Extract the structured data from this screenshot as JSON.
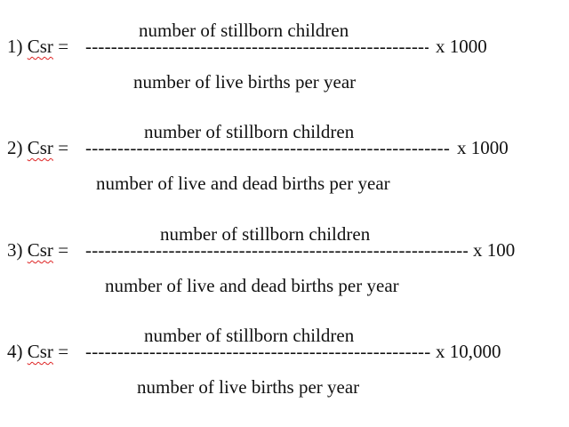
{
  "formulas": [
    {
      "index_label": "1)",
      "variable": "Csr",
      "equals": "=",
      "numerator": "number of stillborn children",
      "denominator": "number of live births per year",
      "multiplier": "x 1000"
    },
    {
      "index_label": "2)",
      "variable": "Csr",
      "equals": "=",
      "numerator": "number of stillborn children",
      "denominator": "number of live and dead births per year",
      "multiplier": "x 1000"
    },
    {
      "index_label": "3)",
      "variable": "Csr",
      "equals": "=",
      "numerator": "number of stillborn children",
      "denominator": "number of live and dead births per year",
      "multiplier": "x 100"
    },
    {
      "index_label": "4)",
      "variable": "Csr",
      "equals": "=",
      "numerator": "number of stillborn children",
      "denominator": "number of live births per year",
      "multiplier": "x 10,000"
    }
  ],
  "colors": {
    "text": "#111111",
    "spellcheck_underline": "#dd2222",
    "background": "#ffffff"
  }
}
